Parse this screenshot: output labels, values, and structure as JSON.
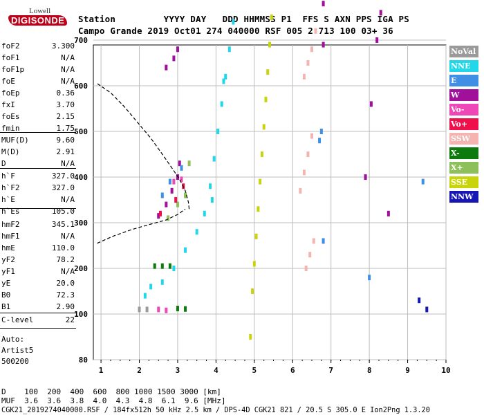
{
  "logo": {
    "line1": "Lowell",
    "line2": "DIGISONDE"
  },
  "header": {
    "row1": "Station         YYYY DAY   DDD HHMMSS P1  FFS S AXN PPS IGA PS",
    "row2": "Campo Grande 2019 Oct01 274 040000 RSF 005 2 713 100 03+ 36"
  },
  "params_group1": [
    {
      "name": "foF2",
      "value": "3.300"
    },
    {
      "name": "foF1",
      "value": "N/A"
    },
    {
      "name": "foF1p",
      "value": "N/A"
    },
    {
      "name": "foE",
      "value": "N/A"
    },
    {
      "name": "foEp",
      "value": "0.36"
    },
    {
      "name": "fxI",
      "value": "3.70"
    },
    {
      "name": "foEs",
      "value": "2.15"
    },
    {
      "name": "fmin",
      "value": "1.75"
    }
  ],
  "params_group2": [
    {
      "name": "MUF(D)",
      "value": "9.60"
    },
    {
      "name": "M(D)",
      "value": "2.91"
    },
    {
      "name": "D",
      "value": "N/A"
    }
  ],
  "params_group3": [
    {
      "name": "h`F",
      "value": "327.0"
    },
    {
      "name": "h`F2",
      "value": "327.0"
    },
    {
      "name": "h`E",
      "value": "N/A"
    },
    {
      "name": "h`Es",
      "value": "105.0"
    }
  ],
  "params_group4": [
    {
      "name": "hmF2",
      "value": "345.1"
    },
    {
      "name": "hmF1",
      "value": "N/A"
    },
    {
      "name": "hmE",
      "value": "110.0"
    },
    {
      "name": "yF2",
      "value": "78.2"
    },
    {
      "name": "yF1",
      "value": "N/A"
    },
    {
      "name": "yE",
      "value": "20.0"
    },
    {
      "name": "B0",
      "value": "72.3"
    },
    {
      "name": "B1",
      "value": "2.90"
    }
  ],
  "params_group5": [
    {
      "name": "C-level",
      "value": "22"
    }
  ],
  "autoscaling": {
    "line1": "Auto:",
    "line2": "Artist5",
    "line3": "500200"
  },
  "legend": [
    {
      "label": "NoVal",
      "bg": "#9a9a9a",
      "fg": "#ffffff"
    },
    {
      "label": "NNE",
      "bg": "#22d7ea",
      "fg": "#ffffff"
    },
    {
      "label": "E",
      "bg": "#3f8fe4",
      "fg": "#ffffff"
    },
    {
      "label": "W",
      "bg": "#a0109a",
      "fg": "#ffffff"
    },
    {
      "label": "Vo-",
      "bg": "#ee48b8",
      "fg": "#ffffff"
    },
    {
      "label": "Vo+",
      "bg": "#ef0f4a",
      "fg": "#ffffff"
    },
    {
      "label": "SSW",
      "bg": "#f4b4b0",
      "fg": "#ffffff"
    },
    {
      "label": "X-",
      "bg": "#0c7a0c",
      "fg": "#ffffff"
    },
    {
      "label": "X+",
      "bg": "#8ec05a",
      "fg": "#ffffff"
    },
    {
      "label": "SSE",
      "bg": "#c8d40c",
      "fg": "#ffffff"
    },
    {
      "label": "NNW",
      "bg": "#1616b4",
      "fg": "#ffffff"
    }
  ],
  "footer": {
    "d_row": "D    100  200  400  600  800 1000 1500 3000 [km]",
    "muf_row": "MUF  3.6  3.6  3.8  4.0  4.3  4.8  6.1  9.6 [MHz]",
    "info": "CGK21_2019274040000.RSF / 184fx512h 50 kHz 2.5 km / DPS-4D CGK21 821 / 20.5 S 305.0 E Ion2Png 1.3.20"
  },
  "chart_data": {
    "type": "scatter",
    "title": "",
    "xlabel": "",
    "ylabel": "",
    "xlim": [
      0.8,
      10
    ],
    "ylim": [
      80,
      900
    ],
    "xticks": [
      "1",
      "2",
      "3",
      "4",
      "5",
      "6",
      "7",
      "8",
      "9",
      "10"
    ],
    "yticks": [
      "80",
      "100",
      "200",
      "300",
      "400",
      "500",
      "600",
      "700",
      "800",
      "900"
    ],
    "grid": true,
    "series": [
      {
        "name": "NNE",
        "color": "#22d7ea",
        "points": [
          [
            2.15,
            140
          ],
          [
            2.3,
            160
          ],
          [
            2.6,
            170
          ],
          [
            2.9,
            200
          ],
          [
            3.2,
            240
          ],
          [
            3.5,
            280
          ],
          [
            3.7,
            320
          ],
          [
            3.85,
            380
          ],
          [
            3.95,
            440
          ],
          [
            4.05,
            500
          ],
          [
            4.15,
            560
          ],
          [
            4.25,
            620
          ],
          [
            4.35,
            680
          ],
          [
            4.45,
            740
          ],
          [
            4.55,
            800
          ],
          [
            4.6,
            860
          ],
          [
            4.65,
            900
          ],
          [
            3.9,
            350
          ],
          [
            4.2,
            610
          ]
        ]
      },
      {
        "name": "SSE",
        "color": "#c8d40c",
        "points": [
          [
            4.9,
            90
          ],
          [
            4.95,
            150
          ],
          [
            5.0,
            210
          ],
          [
            5.05,
            270
          ],
          [
            5.1,
            330
          ],
          [
            5.15,
            390
          ],
          [
            5.2,
            450
          ],
          [
            5.25,
            510
          ],
          [
            5.3,
            570
          ],
          [
            5.35,
            630
          ],
          [
            5.4,
            690
          ],
          [
            5.45,
            750
          ],
          [
            5.5,
            810
          ],
          [
            5.55,
            870
          ],
          [
            5.6,
            900
          ]
        ]
      },
      {
        "name": "W",
        "color": "#a0109a",
        "points": [
          [
            2.5,
            315
          ],
          [
            2.7,
            340
          ],
          [
            2.85,
            370
          ],
          [
            3.0,
            400
          ],
          [
            3.05,
            430
          ],
          [
            2.7,
            640
          ],
          [
            2.9,
            660
          ],
          [
            3.0,
            680
          ],
          [
            6.8,
            780
          ],
          [
            6.8,
            690
          ],
          [
            7.9,
            400
          ],
          [
            8.05,
            560
          ],
          [
            8.2,
            700
          ],
          [
            8.3,
            760
          ],
          [
            8.4,
            880
          ],
          [
            8.5,
            320
          ]
        ]
      },
      {
        "name": "E",
        "color": "#3f8fe4",
        "points": [
          [
            2.6,
            360
          ],
          [
            2.8,
            390
          ],
          [
            3.1,
            420
          ],
          [
            6.7,
            480
          ],
          [
            6.75,
            500
          ],
          [
            6.8,
            260
          ],
          [
            8.0,
            180
          ],
          [
            9.4,
            390
          ],
          [
            9.45,
            820
          ]
        ]
      },
      {
        "name": "SSW",
        "color": "#f4b4b0",
        "points": [
          [
            6.3,
            620
          ],
          [
            6.4,
            650
          ],
          [
            6.5,
            680
          ],
          [
            6.6,
            720
          ],
          [
            6.2,
            370
          ],
          [
            6.3,
            410
          ],
          [
            6.4,
            450
          ],
          [
            6.5,
            490
          ],
          [
            6.35,
            200
          ],
          [
            6.45,
            230
          ],
          [
            6.55,
            260
          ]
        ]
      },
      {
        "name": "X+",
        "color": "#8ec05a",
        "points": [
          [
            2.75,
            310
          ],
          [
            3.0,
            340
          ],
          [
            3.2,
            360
          ],
          [
            3.3,
            430
          ]
        ]
      },
      {
        "name": "X-",
        "color": "#0c7a0c",
        "points": [
          [
            2.4,
            205
          ],
          [
            2.6,
            205
          ],
          [
            2.8,
            205
          ],
          [
            3.2,
            111
          ],
          [
            3.0,
            112
          ]
        ]
      },
      {
        "name": "Vo-",
        "color": "#ee48b8",
        "points": [
          [
            2.9,
            390
          ],
          [
            3.1,
            395
          ],
          [
            2.5,
            110
          ],
          [
            2.7,
            108
          ]
        ]
      },
      {
        "name": "Vo+",
        "color": "#ef0f4a",
        "points": [
          [
            2.55,
            320
          ],
          [
            2.95,
            350
          ],
          [
            3.15,
            380
          ]
        ]
      },
      {
        "name": "NoVal",
        "color": "#9a9a9a",
        "points": [
          [
            2.0,
            110
          ],
          [
            2.2,
            110
          ]
        ]
      },
      {
        "name": "NNW",
        "color": "#1616b4",
        "points": [
          [
            9.3,
            130
          ],
          [
            9.5,
            110
          ]
        ]
      }
    ],
    "profile": [
      [
        3.3,
        330
      ],
      [
        3.28,
        345
      ],
      [
        3.2,
        370
      ],
      [
        3.05,
        395
      ],
      [
        2.85,
        420
      ],
      [
        2.6,
        450
      ],
      [
        2.3,
        485
      ],
      [
        1.95,
        520
      ],
      [
        1.6,
        555
      ],
      [
        1.25,
        585
      ],
      [
        0.9,
        605
      ]
    ],
    "profile_bottom": [
      [
        0.9,
        255
      ],
      [
        1.3,
        270
      ],
      [
        1.8,
        285
      ],
      [
        2.3,
        297
      ],
      [
        2.7,
        306
      ],
      [
        3.0,
        318
      ],
      [
        3.2,
        330
      ]
    ]
  }
}
